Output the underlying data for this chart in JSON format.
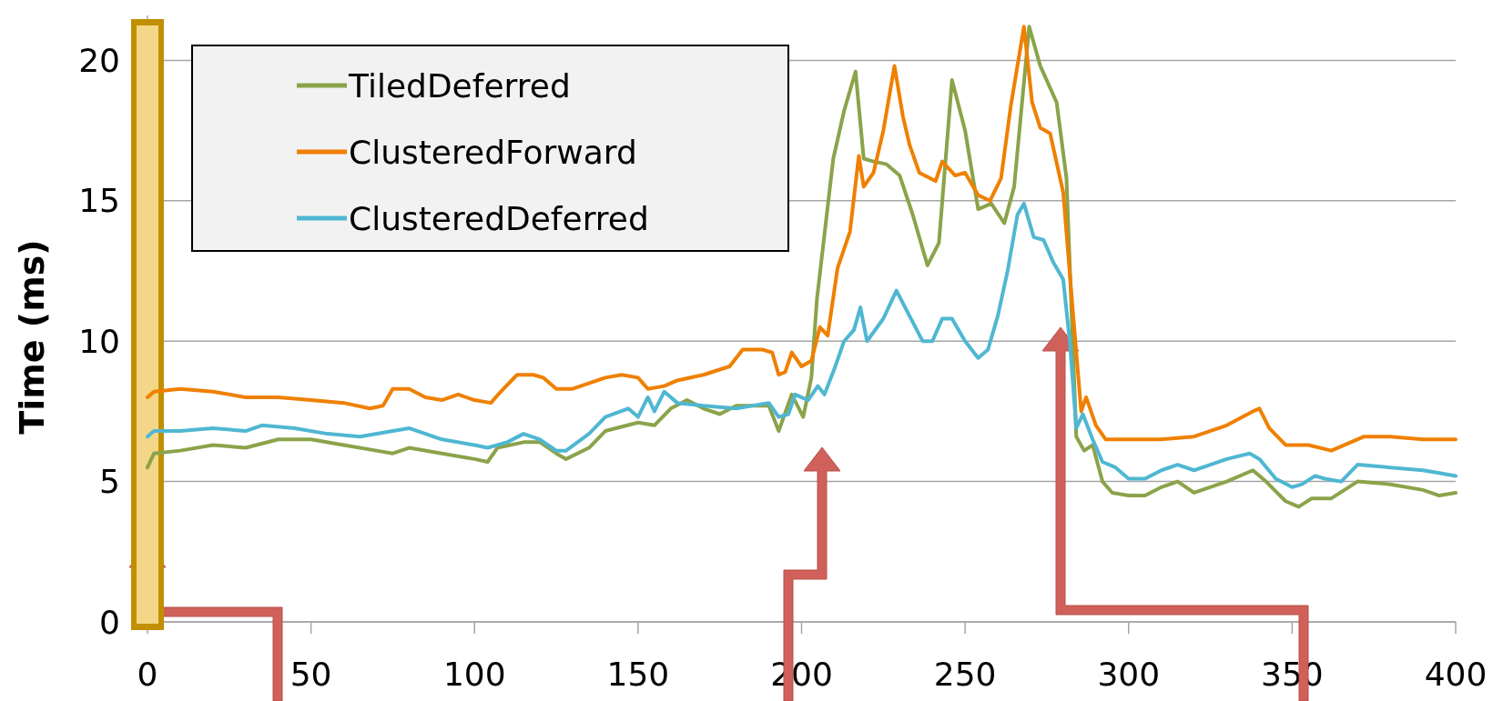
{
  "chart_data": {
    "type": "line",
    "ylabel": "Time (ms)",
    "xlim": [
      0,
      400
    ],
    "xticks": [
      0,
      50,
      100,
      150,
      200,
      250,
      300,
      350,
      400
    ],
    "ylim": [
      0,
      21.6
    ],
    "yticks": [
      0,
      5,
      10,
      15,
      20
    ],
    "grid": "y",
    "legend": "top left",
    "ref_lines": [
      {
        "axis": "x",
        "value": 0,
        "color": "#c09000"
      },
      {
        "axis": "x",
        "value": 0,
        "color": "#fbe3a0"
      }
    ],
    "line_style": "solid",
    "marker": "none",
    "series": [
      {
        "name": "TiledDeferred",
        "color": "#8ba34a",
        "x": [
          0,
          2,
          10,
          20,
          30,
          40,
          50,
          60,
          70,
          75,
          80,
          90,
          100,
          104,
          107,
          115,
          120,
          125,
          128,
          135,
          140,
          150,
          155,
          160,
          165,
          170,
          175,
          180,
          190,
          193,
          197,
          200.5,
          203,
          204.7,
          209.7,
          213,
          216.5,
          219,
          222,
          226,
          230,
          234,
          238.5,
          242,
          246,
          250,
          254,
          258,
          262,
          265,
          269.6,
          273,
          278,
          281,
          284,
          286.4,
          289,
          292,
          295,
          300,
          305,
          310,
          315,
          320,
          330,
          338,
          342,
          348,
          352,
          356,
          362,
          370,
          380,
          390,
          395,
          400
        ],
        "values": [
          5.5,
          6.0,
          6.1,
          6.3,
          6.2,
          6.5,
          6.5,
          6.3,
          6.1,
          6.0,
          6.2,
          6.0,
          5.8,
          5.7,
          6.2,
          6.4,
          6.4,
          6.0,
          5.8,
          6.2,
          6.8,
          7.1,
          7.0,
          7.6,
          7.9,
          7.6,
          7.4,
          7.7,
          7.7,
          6.8,
          8.1,
          7.3,
          8.7,
          11.5,
          16.5,
          18.2,
          19.6,
          16.5,
          16.4,
          16.3,
          15.9,
          14.5,
          12.7,
          13.5,
          19.3,
          17.5,
          14.7,
          14.9,
          14.2,
          15.5,
          21.2,
          19.8,
          18.5,
          15.8,
          6.6,
          6.1,
          6.3,
          5.0,
          4.6,
          4.5,
          4.5,
          4.8,
          5.0,
          4.6,
          5.0,
          5.4,
          5.0,
          4.3,
          4.1,
          4.4,
          4.4,
          5.0,
          4.9,
          4.7,
          4.5,
          4.6
        ]
      },
      {
        "name": "ClusteredForward",
        "color": "#ef8000",
        "x": [
          0,
          2,
          10,
          20,
          30,
          40,
          50,
          60,
          68,
          72,
          75,
          80,
          85,
          90,
          95,
          100,
          105,
          108,
          113,
          118,
          121,
          125,
          130,
          140,
          145,
          150,
          153,
          158,
          162,
          170,
          178,
          182,
          188,
          191,
          193,
          195,
          197,
          200,
          203,
          205.6,
          208,
          211,
          214.8,
          217.5,
          219,
          222,
          225,
          228.4,
          231,
          233,
          236,
          241,
          243,
          247,
          250,
          254,
          257.6,
          261,
          264,
          268,
          270.5,
          273,
          276,
          280,
          283,
          285.5,
          287,
          290,
          293,
          300,
          310,
          320,
          330,
          338,
          340,
          343,
          348,
          355,
          362,
          366,
          372,
          380,
          390,
          400
        ],
        "values": [
          8.0,
          8.2,
          8.3,
          8.2,
          8.0,
          8.0,
          7.9,
          7.8,
          7.6,
          7.7,
          8.3,
          8.3,
          8.0,
          7.9,
          8.1,
          7.9,
          7.8,
          8.2,
          8.8,
          8.8,
          8.7,
          8.3,
          8.3,
          8.7,
          8.8,
          8.7,
          8.3,
          8.4,
          8.6,
          8.8,
          9.1,
          9.7,
          9.7,
          9.6,
          8.8,
          8.9,
          9.6,
          9.1,
          9.3,
          10.5,
          10.2,
          12.6,
          13.9,
          16.6,
          15.5,
          16.0,
          17.5,
          19.8,
          18.0,
          17.0,
          16.0,
          15.7,
          16.4,
          15.9,
          16.0,
          15.2,
          15.0,
          15.8,
          18.4,
          21.2,
          18.5,
          17.6,
          17.4,
          15.3,
          11.0,
          7.5,
          8.0,
          7.0,
          6.5,
          6.5,
          6.5,
          6.6,
          7.0,
          7.5,
          7.6,
          6.9,
          6.3,
          6.3,
          6.1,
          6.3,
          6.6,
          6.6,
          6.5,
          6.5
        ]
      },
      {
        "name": "ClusteredDeferred",
        "color": "#4fb7d2",
        "x": [
          0,
          2,
          10,
          20,
          30,
          35,
          45,
          55,
          65,
          75,
          80,
          90,
          100,
          104,
          110,
          115,
          120,
          125,
          128,
          135,
          140,
          147,
          150,
          153,
          155,
          158,
          162,
          170,
          180,
          190,
          193,
          196,
          198,
          202,
          205,
          207,
          210,
          213,
          216,
          218,
          220,
          225,
          229,
          233,
          237,
          240,
          243,
          246,
          250,
          254,
          257,
          260,
          263,
          266,
          268,
          271,
          274,
          277,
          280,
          282,
          284,
          286,
          289,
          292,
          296,
          300,
          305,
          310,
          315,
          320,
          325,
          330,
          337,
          340,
          345,
          350,
          353,
          357,
          360,
          365,
          370,
          380,
          390,
          395,
          400
        ],
        "values": [
          6.6,
          6.8,
          6.8,
          6.9,
          6.8,
          7.0,
          6.9,
          6.7,
          6.6,
          6.8,
          6.9,
          6.5,
          6.3,
          6.2,
          6.4,
          6.7,
          6.5,
          6.1,
          6.1,
          6.7,
          7.3,
          7.6,
          7.3,
          8.0,
          7.5,
          8.2,
          7.8,
          7.7,
          7.6,
          7.8,
          7.3,
          7.4,
          8.1,
          7.9,
          8.4,
          8.1,
          9.0,
          10.0,
          10.4,
          11.2,
          10.0,
          10.8,
          11.8,
          10.9,
          10.0,
          10.0,
          10.8,
          10.8,
          10.0,
          9.4,
          9.7,
          10.9,
          12.5,
          14.5,
          14.9,
          13.7,
          13.6,
          12.8,
          12.2,
          10.0,
          6.9,
          7.4,
          6.5,
          5.7,
          5.5,
          5.1,
          5.1,
          5.4,
          5.6,
          5.4,
          5.6,
          5.8,
          6.0,
          5.8,
          5.1,
          4.8,
          4.9,
          5.2,
          5.1,
          5.0,
          5.6,
          5.5,
          5.4,
          5.3,
          5.2
        ]
      }
    ]
  }
}
